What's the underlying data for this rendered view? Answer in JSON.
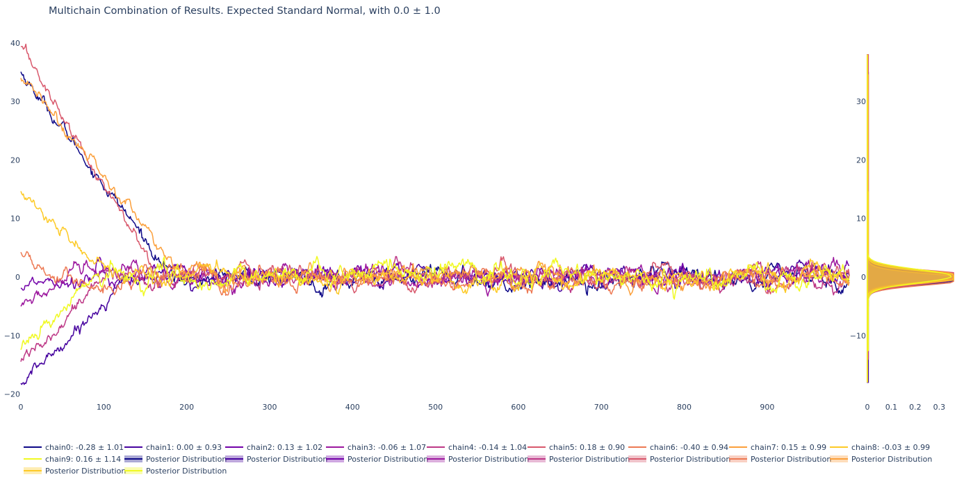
{
  "title": "Multichain Combination of Results. Expected Standard Normal, with 0.0 ± 1.0",
  "colors": [
    "#0d0887",
    "#46039f",
    "#7201a8",
    "#9c179e",
    "#bd3786",
    "#d8576b",
    "#ed7953",
    "#fb9f3a",
    "#fdca26",
    "#f0f921"
  ],
  "chart_data": [
    {
      "type": "line",
      "title": "Multichain Combination of Results. Expected Standard Normal, with 0.0 ± 1.0",
      "xlabel": "",
      "ylabel": "",
      "xlim": [
        0,
        999
      ],
      "ylim": [
        -21,
        42
      ],
      "x_ticks": [
        "0",
        "100",
        "200",
        "300",
        "400",
        "500",
        "600",
        "700",
        "800",
        "900"
      ],
      "y_ticks": [
        "−20",
        "−10",
        "0",
        "10",
        "20",
        "30",
        "40"
      ],
      "x_range": [
        0,
        999
      ],
      "noise_sd": 1.0,
      "series": [
        {
          "name": "chain0: -0.28 ± 1.01",
          "start": 35,
          "burn_end": 185,
          "mean": -0.28,
          "sd": 1.01
        },
        {
          "name": "chain1: 0.00 ± 0.93",
          "start": -18.5,
          "burn_end": 130,
          "mean": 0.0,
          "sd": 0.93
        },
        {
          "name": "chain2: 0.13 ± 1.02",
          "start": -1.5,
          "burn_end": 40,
          "mean": 0.13,
          "sd": 1.02
        },
        {
          "name": "chain3: -0.06 ± 1.07",
          "start": -5.2,
          "burn_end": 60,
          "mean": -0.06,
          "sd": 1.07
        },
        {
          "name": "chain4: -0.14 ± 1.04",
          "start": -14.2,
          "burn_end": 100,
          "mean": -0.14,
          "sd": 1.04
        },
        {
          "name": "chain5: 0.18 ± 0.90",
          "start": 39.5,
          "burn_end": 165,
          "mean": 0.18,
          "sd": 0.9
        },
        {
          "name": "chain6: -0.40 ± 0.94",
          "start": 4.2,
          "burn_end": 40,
          "mean": -0.4,
          "sd": 0.94
        },
        {
          "name": "chain7: 0.15 ± 0.99",
          "start": 34.5,
          "burn_end": 200,
          "mean": 0.15,
          "sd": 0.99
        },
        {
          "name": "chain8: -0.03 ± 0.99",
          "start": 14.5,
          "burn_end": 110,
          "mean": -0.03,
          "sd": 0.99
        },
        {
          "name": "chain9: 0.16 ± 1.14",
          "start": -12.5,
          "burn_end": 90,
          "mean": 0.16,
          "sd": 1.14
        }
      ]
    },
    {
      "type": "area",
      "title": "",
      "orientation": "horizontal",
      "xlim": [
        0,
        0.36
      ],
      "ylim": [
        -21,
        42
      ],
      "x_ticks": [
        "0",
        "0.1",
        "0.2",
        "0.3"
      ],
      "y_ticks": [
        "−10",
        "0",
        "10",
        "20",
        "30"
      ],
      "peak_density": 0.35,
      "series_label": "Posterior Distribution"
    }
  ],
  "legend": {
    "items": [
      {
        "label": "chain0: -0.28 ± 1.01",
        "kind": "line",
        "color": "#0d0887"
      },
      {
        "label": "chain1: 0.00 ± 0.93",
        "kind": "line",
        "color": "#46039f"
      },
      {
        "label": "chain2: 0.13 ± 1.02",
        "kind": "line",
        "color": "#7201a8"
      },
      {
        "label": "chain3: -0.06 ± 1.07",
        "kind": "line",
        "color": "#9c179e"
      },
      {
        "label": "chain4: -0.14 ± 1.04",
        "kind": "line",
        "color": "#bd3786"
      },
      {
        "label": "chain5: 0.18 ± 0.90",
        "kind": "line",
        "color": "#d8576b"
      },
      {
        "label": "chain6: -0.40 ± 0.94",
        "kind": "line",
        "color": "#ed7953"
      },
      {
        "label": "chain7: 0.15 ± 0.99",
        "kind": "line",
        "color": "#fb9f3a"
      },
      {
        "label": "chain8: -0.03 ± 0.99",
        "kind": "line",
        "color": "#fdca26"
      },
      {
        "label": "chain9: 0.16 ± 1.14",
        "kind": "line",
        "color": "#f0f921"
      },
      {
        "label": "Posterior Distribution",
        "kind": "fill",
        "color": "#0d0887"
      },
      {
        "label": "Posterior Distribution",
        "kind": "fill",
        "color": "#46039f"
      },
      {
        "label": "Posterior Distribution",
        "kind": "fill",
        "color": "#7201a8"
      },
      {
        "label": "Posterior Distribution",
        "kind": "fill",
        "color": "#9c179e"
      },
      {
        "label": "Posterior Distribution",
        "kind": "fill",
        "color": "#bd3786"
      },
      {
        "label": "Posterior Distribution",
        "kind": "fill",
        "color": "#d8576b"
      },
      {
        "label": "Posterior Distribution",
        "kind": "fill",
        "color": "#ed7953"
      },
      {
        "label": "Posterior Distribution",
        "kind": "fill",
        "color": "#fb9f3a"
      },
      {
        "label": "Posterior Distribution",
        "kind": "fill",
        "color": "#fdca26"
      },
      {
        "label": "Posterior Distribution",
        "kind": "fill",
        "color": "#f0f921"
      }
    ]
  }
}
